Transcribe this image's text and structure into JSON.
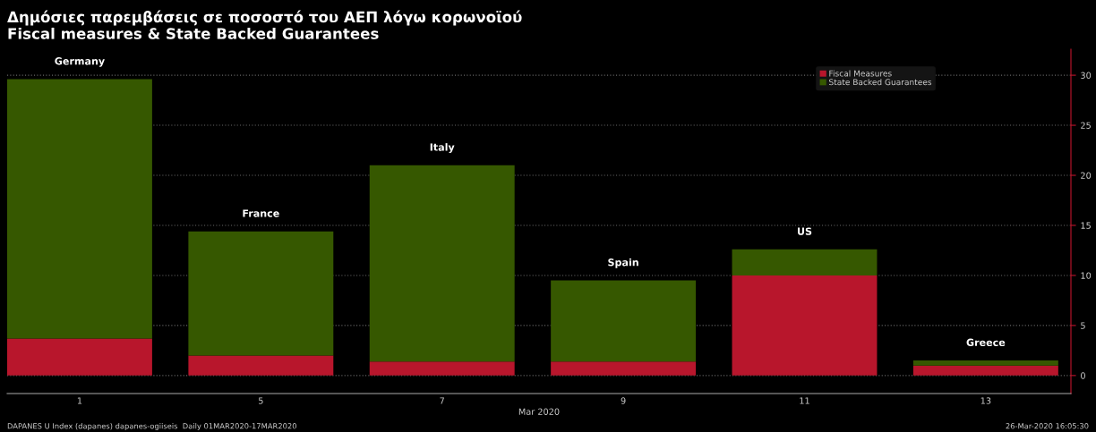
{
  "chart_data": {
    "type": "bar",
    "title": "Δημόσιες παρεμβάσεις σε ποσοστό του ΑΕΠ λόγω κορωνοϊού",
    "subtitle": "Fiscal measures & State Backed Guarantees",
    "xlabel": "Mar 2020",
    "categories": [
      "1",
      "5",
      "7",
      "9",
      "11",
      "13"
    ],
    "stacked": true,
    "series": [
      {
        "name": "Fiscal Measures",
        "color": "#b8162c",
        "values": [
          3.7,
          2.0,
          1.4,
          1.4,
          10.0,
          1.0
        ]
      },
      {
        "name": "State Backed Guarantees",
        "color": "#365800",
        "values": [
          25.9,
          12.4,
          19.6,
          8.1,
          2.6,
          0.5
        ]
      }
    ],
    "ylim": [
      -1.8,
      32.6
    ],
    "yticks": [
      0,
      5,
      10,
      15,
      20,
      25,
      30
    ],
    "grid": "y",
    "legend": "top right",
    "annotations": [
      {
        "text": "Germany",
        "x": "1",
        "y": 29.6
      },
      {
        "text": "France",
        "x": "5",
        "y": 14.4
      },
      {
        "text": "Italy",
        "x": "7",
        "y": 21.0
      },
      {
        "text": "Spain",
        "x": "9",
        "y": 9.5
      },
      {
        "text": "US",
        "x": "11",
        "y": 12.6
      },
      {
        "text": "Greece",
        "x": "13",
        "y": 1.5
      },
      "DAPANES U Index (dapanes) dapanes-ogiiseis  Daily 01MAR2020-17MAR2020",
      "26-Mar-2020 16:05:30"
    ]
  }
}
